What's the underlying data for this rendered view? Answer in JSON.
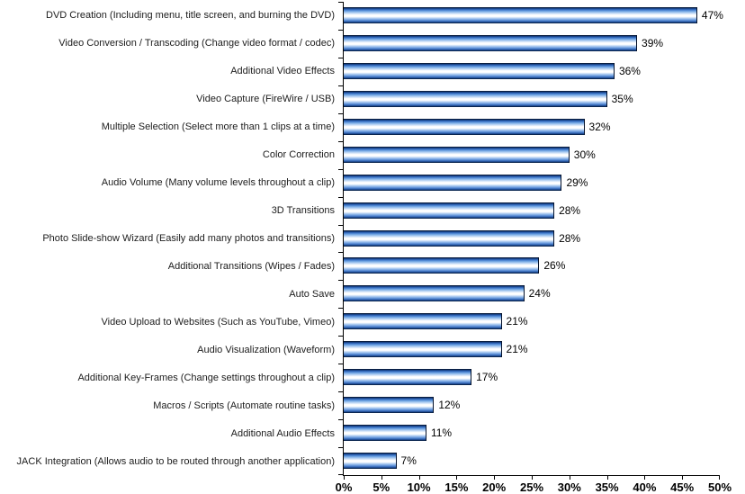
{
  "chart_data": {
    "type": "bar",
    "orientation": "horizontal",
    "title": "",
    "xlabel": "",
    "ylabel": "",
    "grid": false,
    "legend": false,
    "xlim": [
      0,
      50
    ],
    "x_tick_labels": [
      "0%",
      "5%",
      "10%",
      "15%",
      "20%",
      "25%",
      "30%",
      "35%",
      "40%",
      "45%",
      "50%"
    ],
    "value_suffix": "%",
    "categories": [
      "DVD Creation (Including menu, title screen, and burning the DVD)",
      "Video Conversion / Transcoding (Change video format / codec)",
      "Additional Video Effects",
      "Video Capture (FireWire / USB)",
      "Multiple Selection (Select more than 1 clips at a time)",
      "Color Correction",
      "Audio Volume (Many volume levels throughout a clip)",
      "3D Transitions",
      "Photo Slide-show Wizard (Easily add many photos and transitions)",
      "Additional Transitions (Wipes / Fades)",
      "Auto Save",
      "Video Upload to Websites (Such as YouTube, Vimeo)",
      "Audio Visualization (Waveform)",
      "Additional Key-Frames (Change settings throughout a clip)",
      "Macros / Scripts (Automate routine tasks)",
      "Additional Audio Effects",
      "JACK Integration (Allows audio to be routed through another application)"
    ],
    "values": [
      47,
      39,
      36,
      35,
      32,
      30,
      29,
      28,
      28,
      26,
      24,
      21,
      21,
      17,
      12,
      11,
      7
    ],
    "value_labels": [
      "47%",
      "39%",
      "36%",
      "35%",
      "32%",
      "30%",
      "29%",
      "28%",
      "28%",
      "26%",
      "24%",
      "21%",
      "21%",
      "17%",
      "12%",
      "11%",
      "7%"
    ]
  },
  "colors": {
    "background": "#ffffff",
    "axis": "#000000",
    "bar_border": "#05122b",
    "bar_gradient_stops": [
      "#050b18 0%",
      "#123a7c 7%",
      "#3a74c8 16%",
      "#7fb0e8 27%",
      "#c6dcf6 38%",
      "#ffffff 48%",
      "#ffffff 58%",
      "#b4d0f2 68%",
      "#6b9cdf 79%",
      "#2f62b2 89%",
      "#0d2f66 96%",
      "#04101f 100%"
    ]
  }
}
